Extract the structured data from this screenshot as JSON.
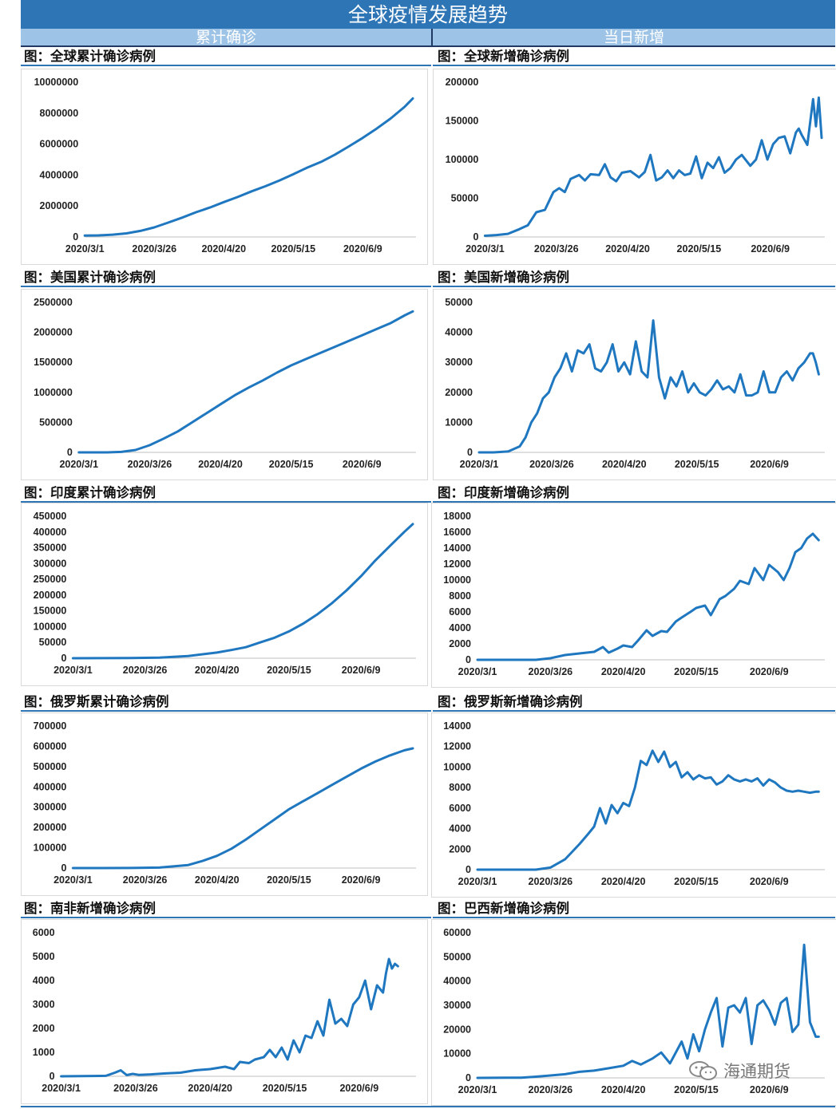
{
  "header": {
    "title": "全球疫情发展趋势",
    "left_label": "累计确诊",
    "right_label": "当日新增"
  },
  "watermark": {
    "text": "海通期货"
  },
  "colors": {
    "line": "#1f77c0",
    "title_bar": "#2e75b6",
    "sub_header": "#9dc3e6"
  },
  "chart_data": [
    {
      "id": "global-cumulative",
      "type": "line",
      "title": "图：全球累计确诊病例",
      "x_ticks": [
        "2020/3/1",
        "2020/3/26",
        "2020/4/20",
        "2020/5/15",
        "2020/6/9"
      ],
      "y_ticks": [
        "0",
        "2000000",
        "4000000",
        "6000000",
        "8000000",
        "10000000"
      ],
      "ylim": [
        0,
        10000000
      ],
      "x_range": [
        0,
        118
      ],
      "x": [
        0,
        5,
        10,
        15,
        20,
        25,
        30,
        35,
        40,
        45,
        50,
        55,
        60,
        65,
        70,
        75,
        80,
        85,
        90,
        95,
        100,
        105,
        110,
        115,
        118
      ],
      "values": [
        90000,
        105000,
        150000,
        230000,
        390000,
        620000,
        930000,
        1250000,
        1600000,
        1900000,
        2250000,
        2580000,
        2950000,
        3280000,
        3650000,
        4050000,
        4480000,
        4850000,
        5320000,
        5850000,
        6400000,
        7000000,
        7650000,
        8400000,
        8950000
      ]
    },
    {
      "id": "global-daily",
      "type": "line",
      "title": "图：全球新增确诊病例",
      "x_ticks": [
        "2020/3/1",
        "2020/3/26",
        "2020/4/20",
        "2020/5/15",
        "2020/6/9"
      ],
      "y_ticks": [
        "0",
        "50000",
        "100000",
        "150000",
        "200000"
      ],
      "ylim": [
        0,
        200000
      ],
      "x_range": [
        0,
        118
      ],
      "x": [
        0,
        4,
        8,
        12,
        15,
        18,
        21,
        24,
        26,
        28,
        30,
        33,
        35,
        37,
        40,
        42,
        44,
        46,
        48,
        51,
        54,
        56,
        58,
        60,
        62,
        64,
        66,
        68,
        70,
        72,
        74,
        76,
        78,
        80,
        82,
        84,
        86,
        88,
        90,
        93,
        95,
        97,
        99,
        101,
        103,
        105,
        107,
        109,
        110,
        111,
        113,
        115,
        116,
        117,
        118
      ],
      "values": [
        1500,
        2500,
        4000,
        10000,
        15000,
        32000,
        35000,
        58000,
        63000,
        58000,
        75000,
        80000,
        73000,
        81000,
        80000,
        94000,
        77000,
        72000,
        83000,
        85000,
        77000,
        84000,
        106000,
        73000,
        77000,
        86000,
        76000,
        86000,
        80000,
        82000,
        104000,
        76000,
        96000,
        89000,
        103000,
        83000,
        89000,
        100000,
        106000,
        92000,
        100000,
        125000,
        100000,
        120000,
        128000,
        130000,
        108000,
        135000,
        140000,
        132000,
        119000,
        178000,
        143000,
        180000,
        128000
      ]
    },
    {
      "id": "us-cumulative",
      "type": "line",
      "title": "图：美国累计确诊病例",
      "x_ticks": [
        "2020/3/1",
        "2020/3/26",
        "2020/4/20",
        "2020/5/15",
        "2020/6/9"
      ],
      "y_ticks": [
        "0",
        "500000",
        "1000000",
        "1500000",
        "2000000",
        "2500000"
      ],
      "ylim": [
        0,
        2500000
      ],
      "x_range": [
        0,
        118
      ],
      "x": [
        0,
        10,
        15,
        20,
        25,
        30,
        35,
        40,
        45,
        50,
        55,
        60,
        65,
        70,
        75,
        80,
        85,
        90,
        95,
        100,
        105,
        110,
        115,
        118
      ],
      "values": [
        0,
        500,
        8000,
        40000,
        120000,
        230000,
        350000,
        500000,
        650000,
        800000,
        950000,
        1080000,
        1200000,
        1330000,
        1450000,
        1550000,
        1650000,
        1750000,
        1850000,
        1950000,
        2050000,
        2150000,
        2280000,
        2350000
      ]
    },
    {
      "id": "us-daily",
      "type": "line",
      "title": "图：美国新增确诊病例",
      "x_ticks": [
        "2020/3/1",
        "2020/3/26",
        "2020/4/20",
        "2020/5/15",
        "2020/6/9"
      ],
      "y_ticks": [
        "0",
        "10000",
        "20000",
        "30000",
        "40000",
        "50000"
      ],
      "ylim": [
        0,
        50000
      ],
      "x_range": [
        0,
        118
      ],
      "x": [
        0,
        5,
        10,
        14,
        16,
        18,
        20,
        22,
        24,
        26,
        28,
        30,
        32,
        34,
        36,
        38,
        40,
        42,
        44,
        46,
        48,
        50,
        52,
        54,
        56,
        58,
        60,
        62,
        64,
        66,
        68,
        70,
        72,
        74,
        76,
        78,
        80,
        82,
        84,
        86,
        88,
        90,
        92,
        94,
        96,
        98,
        100,
        102,
        104,
        106,
        108,
        110,
        112,
        114,
        115,
        116,
        117
      ],
      "values": [
        0,
        0,
        300,
        2000,
        5000,
        10000,
        13000,
        18000,
        20000,
        25000,
        28000,
        33000,
        27000,
        34000,
        33000,
        36000,
        28000,
        27000,
        30000,
        36000,
        27000,
        30000,
        26000,
        37000,
        27000,
        25000,
        44000,
        25000,
        18000,
        25000,
        22000,
        27000,
        20000,
        23000,
        20000,
        19000,
        21000,
        24000,
        21000,
        22000,
        20000,
        26000,
        19000,
        19000,
        20000,
        27000,
        20000,
        20000,
        25000,
        27000,
        24000,
        28000,
        30000,
        33000,
        33000,
        30000,
        26000
      ]
    },
    {
      "id": "india-cumulative",
      "type": "line",
      "title": "图：印度累计确诊病例",
      "x_ticks": [
        "2020/3/1",
        "2020/3/26",
        "2020/4/20",
        "2020/5/15",
        "2020/6/9"
      ],
      "y_ticks": [
        "0",
        "50000",
        "100000",
        "150000",
        "200000",
        "250000",
        "300000",
        "350000",
        "400000",
        "450000"
      ],
      "ylim": [
        0,
        450000
      ],
      "x_range": [
        0,
        118
      ],
      "x": [
        0,
        20,
        30,
        40,
        50,
        55,
        60,
        65,
        70,
        75,
        80,
        85,
        90,
        95,
        100,
        105,
        110,
        115,
        118
      ],
      "values": [
        0,
        500,
        2000,
        7000,
        18000,
        26000,
        35000,
        50000,
        65000,
        85000,
        110000,
        140000,
        175000,
        215000,
        260000,
        310000,
        355000,
        400000,
        425000
      ]
    },
    {
      "id": "india-daily",
      "type": "line",
      "title": "图：印度新增确诊病例",
      "x_ticks": [
        "2020/3/1",
        "2020/3/26",
        "2020/4/20",
        "2020/5/15",
        "2020/6/9"
      ],
      "y_ticks": [
        "0",
        "2000",
        "4000",
        "6000",
        "8000",
        "10000",
        "12000",
        "14000",
        "16000",
        "18000"
      ],
      "ylim": [
        0,
        18000
      ],
      "x_range": [
        0,
        118
      ],
      "x": [
        0,
        20,
        25,
        30,
        35,
        40,
        43,
        45,
        48,
        50,
        53,
        55,
        58,
        60,
        63,
        65,
        68,
        70,
        73,
        75,
        78,
        80,
        83,
        85,
        88,
        90,
        93,
        95,
        98,
        100,
        103,
        105,
        107,
        109,
        111,
        113,
        115,
        117
      ],
      "values": [
        0,
        0,
        200,
        600,
        800,
        1000,
        1600,
        900,
        1400,
        1800,
        1600,
        2400,
        3700,
        3000,
        3600,
        3500,
        4800,
        5300,
        6000,
        6500,
        6800,
        5600,
        7600,
        8000,
        8900,
        9900,
        9500,
        11500,
        10000,
        11900,
        11000,
        10000,
        11500,
        13500,
        14000,
        15200,
        15800,
        15000
      ]
    },
    {
      "id": "russia-cumulative",
      "type": "line",
      "title": "图：俄罗斯累计确诊病例",
      "x_ticks": [
        "2020/3/1",
        "2020/3/26",
        "2020/4/20",
        "2020/5/15",
        "2020/6/9"
      ],
      "y_ticks": [
        "0",
        "100000",
        "200000",
        "300000",
        "400000",
        "500000",
        "600000",
        "700000"
      ],
      "ylim": [
        0,
        700000
      ],
      "x_range": [
        0,
        118
      ],
      "x": [
        0,
        20,
        30,
        40,
        45,
        50,
        55,
        60,
        65,
        70,
        75,
        80,
        85,
        90,
        95,
        100,
        105,
        110,
        115,
        118
      ],
      "values": [
        0,
        200,
        2500,
        15000,
        35000,
        60000,
        95000,
        140000,
        190000,
        240000,
        290000,
        330000,
        370000,
        410000,
        450000,
        490000,
        525000,
        555000,
        580000,
        590000
      ]
    },
    {
      "id": "russia-daily",
      "type": "line",
      "title": "图：俄罗斯新增确诊病例",
      "x_ticks": [
        "2020/3/1",
        "2020/3/26",
        "2020/4/20",
        "2020/5/15",
        "2020/6/9"
      ],
      "y_ticks": [
        "0",
        "2000",
        "4000",
        "6000",
        "8000",
        "10000",
        "12000",
        "14000"
      ],
      "ylim": [
        0,
        14000
      ],
      "x_range": [
        0,
        118
      ],
      "x": [
        0,
        20,
        25,
        30,
        35,
        38,
        40,
        42,
        44,
        46,
        48,
        50,
        52,
        54,
        56,
        58,
        60,
        62,
        64,
        66,
        68,
        70,
        72,
        74,
        76,
        78,
        80,
        82,
        84,
        86,
        88,
        90,
        92,
        94,
        96,
        98,
        100,
        102,
        104,
        106,
        108,
        110,
        112,
        114,
        116,
        117
      ],
      "values": [
        0,
        0,
        200,
        1000,
        2500,
        3500,
        4200,
        6000,
        4500,
        6300,
        5500,
        6500,
        6200,
        8000,
        10600,
        10200,
        11600,
        10500,
        11500,
        10000,
        10500,
        9000,
        9500,
        8800,
        9200,
        8900,
        9000,
        8300,
        8600,
        9200,
        8800,
        8600,
        8800,
        8600,
        8900,
        8200,
        8800,
        8500,
        8000,
        7700,
        7600,
        7700,
        7600,
        7500,
        7600,
        7600
      ]
    },
    {
      "id": "south-africa-daily",
      "type": "line",
      "title": "图：南非新增确诊病例",
      "x_ticks": [
        "2020/3/1",
        "2020/3/26",
        "2020/4/20",
        "2020/5/15",
        "2020/6/9"
      ],
      "y_ticks": [
        "0",
        "1000",
        "2000",
        "3000",
        "4000",
        "5000",
        "6000"
      ],
      "ylim": [
        0,
        6000
      ],
      "x_range": [
        0,
        118
      ],
      "x": [
        0,
        15,
        18,
        20,
        22,
        24,
        26,
        30,
        35,
        40,
        45,
        50,
        55,
        58,
        60,
        63,
        65,
        68,
        70,
        72,
        74,
        76,
        78,
        80,
        82,
        84,
        86,
        88,
        90,
        92,
        94,
        96,
        98,
        100,
        102,
        104,
        106,
        108,
        109,
        110,
        111,
        112,
        113
      ],
      "values": [
        0,
        20,
        150,
        250,
        50,
        100,
        60,
        80,
        120,
        150,
        250,
        300,
        400,
        300,
        600,
        550,
        700,
        800,
        1100,
        800,
        1200,
        700,
        1500,
        1000,
        1700,
        1600,
        2300,
        1700,
        3200,
        2200,
        2400,
        2100,
        3000,
        3300,
        4000,
        2800,
        3800,
        3500,
        4300,
        4900,
        4500,
        4700,
        4600
      ]
    },
    {
      "id": "brazil-daily",
      "type": "line",
      "title": "图：巴西新增确诊病例",
      "x_ticks": [
        "2020/3/1",
        "2020/3/26",
        "2020/4/20",
        "2020/5/15",
        "2020/6/9"
      ],
      "y_ticks": [
        "0",
        "10000",
        "20000",
        "30000",
        "40000",
        "50000",
        "60000"
      ],
      "ylim": [
        0,
        60000
      ],
      "x_range": [
        0,
        118
      ],
      "x": [
        0,
        15,
        20,
        25,
        30,
        35,
        40,
        45,
        50,
        53,
        56,
        60,
        63,
        66,
        70,
        72,
        74,
        76,
        78,
        80,
        82,
        84,
        86,
        88,
        90,
        92,
        94,
        96,
        98,
        100,
        102,
        104,
        106,
        108,
        110,
        112,
        114,
        116,
        117
      ],
      "values": [
        0,
        100,
        500,
        1000,
        1500,
        2500,
        3000,
        4000,
        5000,
        7000,
        5500,
        8000,
        10500,
        6000,
        15000,
        8000,
        18000,
        11000,
        20000,
        27000,
        33000,
        13000,
        29000,
        30000,
        27000,
        33000,
        14000,
        30000,
        32000,
        28000,
        22000,
        31000,
        33000,
        19000,
        22000,
        55000,
        23000,
        17000,
        17000
      ]
    }
  ]
}
